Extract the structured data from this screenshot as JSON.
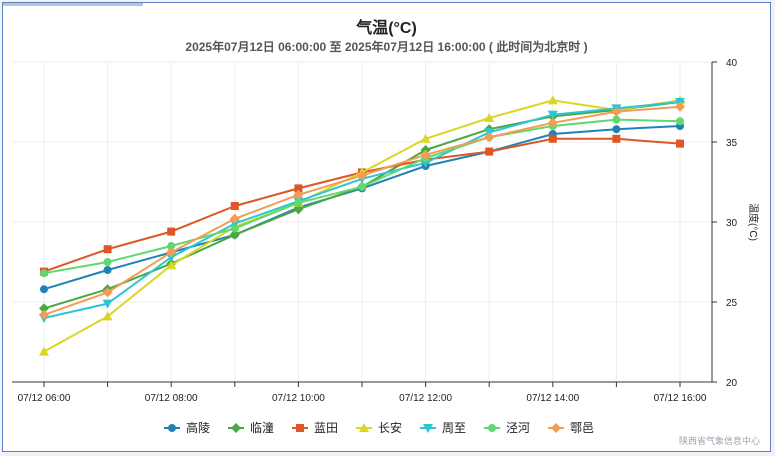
{
  "chart_data": {
    "type": "line",
    "title": "气温(°C)",
    "subtitle": "2025年07月12日 06:00:00 至 2025年07月12日 16:00:00 ( 此时间为北京时 )",
    "ylabel": "温度(°C)",
    "xlabel": "",
    "ylim": [
      20,
      40
    ],
    "yticks": [
      20,
      25,
      30,
      35,
      40
    ],
    "x": [
      "06:00",
      "07:00",
      "08:00",
      "09:00",
      "10:00",
      "11:00",
      "12:00",
      "13:00",
      "14:00",
      "15:00",
      "16:00"
    ],
    "xtick_labels": [
      {
        "index": 0,
        "label": "07/12 06:00"
      },
      {
        "index": 2,
        "label": "07/12 08:00"
      },
      {
        "index": 4,
        "label": "07/12 10:00"
      },
      {
        "index": 6,
        "label": "07/12 12:00"
      },
      {
        "index": 8,
        "label": "07/12 14:00"
      },
      {
        "index": 10,
        "label": "07/12 16:00"
      }
    ],
    "grid": true,
    "legend_position": "bottom",
    "series": [
      {
        "name": "高陵",
        "color": "#1f84b5",
        "marker": "circle",
        "values": [
          25.8,
          27.0,
          28.1,
          29.2,
          30.9,
          32.1,
          33.5,
          34.4,
          35.5,
          35.8,
          36.0
        ]
      },
      {
        "name": "临潼",
        "color": "#4ba840",
        "marker": "diamond",
        "values": [
          24.6,
          25.8,
          27.4,
          29.2,
          30.8,
          32.2,
          34.5,
          35.8,
          36.6,
          37.0,
          37.5
        ]
      },
      {
        "name": "蓝田",
        "color": "#dd5624",
        "marker": "square",
        "values": [
          26.9,
          28.3,
          29.4,
          31.0,
          32.1,
          33.1,
          33.9,
          34.4,
          35.2,
          35.2,
          34.9
        ]
      },
      {
        "name": "长安",
        "color": "#d9d722",
        "marker": "triangle",
        "values": [
          21.9,
          24.1,
          27.3,
          29.7,
          31.2,
          33.1,
          35.2,
          36.5,
          37.6,
          37.0,
          37.6
        ]
      },
      {
        "name": "周至",
        "color": "#2bc5d3",
        "marker": "tri-down",
        "values": [
          24.0,
          24.9,
          27.8,
          29.9,
          31.3,
          32.7,
          33.7,
          35.6,
          36.7,
          37.1,
          37.5
        ]
      },
      {
        "name": "泾河",
        "color": "#5fd86f",
        "marker": "circle",
        "values": [
          26.8,
          27.5,
          28.5,
          29.6,
          31.2,
          32.2,
          34.0,
          35.3,
          36.0,
          36.4,
          36.3
        ]
      },
      {
        "name": "鄠邑",
        "color": "#f39c55",
        "marker": "diamond",
        "values": [
          24.2,
          25.6,
          28.1,
          30.2,
          31.7,
          32.9,
          34.2,
          35.3,
          36.2,
          36.9,
          37.2
        ]
      }
    ]
  },
  "credit": "陕西省气象信息中心"
}
